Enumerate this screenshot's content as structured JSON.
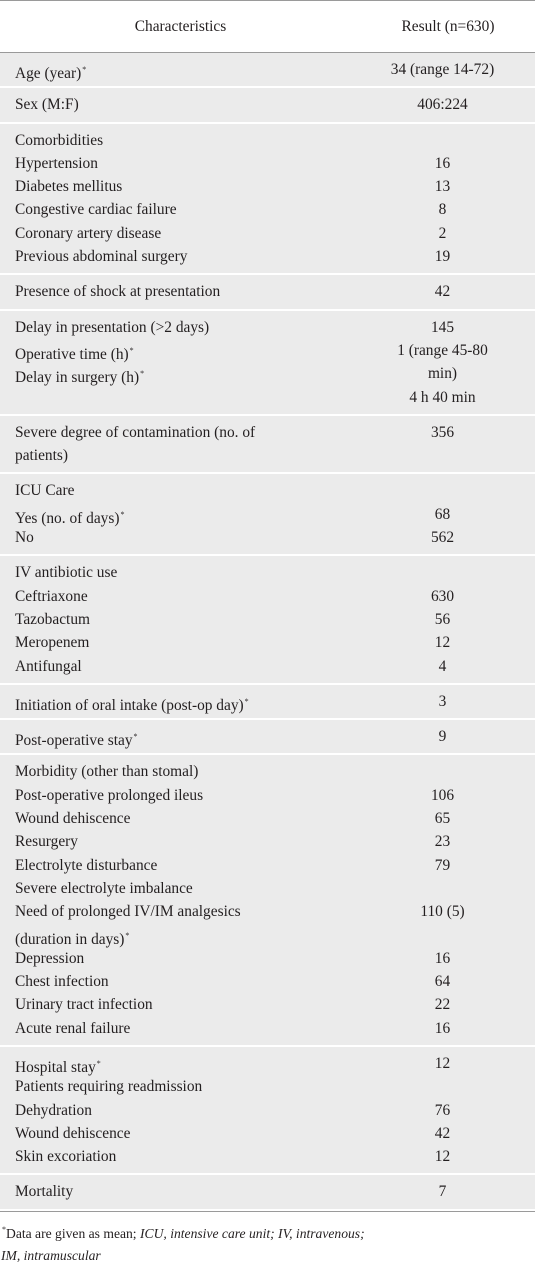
{
  "header": {
    "col1": "Characteristics",
    "col2": "Result (n=630)"
  },
  "groups": [
    {
      "lines": [
        {
          "label": "Age (year)",
          "ast": true,
          "value": "34 (range 14-72)"
        }
      ]
    },
    {
      "lines": [
        {
          "label": "Sex (M:F)",
          "value": "406:224"
        }
      ]
    },
    {
      "lines": [
        {
          "label": "Comorbidities",
          "value": ""
        },
        {
          "label": "Hypertension",
          "value": "16"
        },
        {
          "label": "Diabetes mellitus",
          "value": "13"
        },
        {
          "label": "Congestive cardiac failure",
          "value": "8"
        },
        {
          "label": "Coronary artery disease",
          "value": "2"
        },
        {
          "label": "Previous abdominal surgery",
          "value": "19"
        }
      ]
    },
    {
      "lines": [
        {
          "label": "Presence of shock at presentation",
          "value": "42"
        }
      ]
    },
    {
      "lines": [
        {
          "label": "Delay in presentation (>2 days)",
          "value": "145"
        },
        {
          "label": "Operative time (h)",
          "ast": true,
          "value": "1 (range 45-80"
        },
        {
          "label": "Delay in surgery (h)",
          "ast": true,
          "value": "min)"
        },
        {
          "label": "",
          "value": "4 h 40 min"
        }
      ]
    },
    {
      "lines": [
        {
          "label": "Severe degree of contamination (no. of",
          "value": "356"
        },
        {
          "label": "patients)",
          "value": ""
        }
      ]
    },
    {
      "lines": [
        {
          "label": "ICU Care",
          "value": ""
        },
        {
          "label": "Yes (no. of days)",
          "ast": true,
          "value": "68"
        },
        {
          "label": "No",
          "value": "562"
        }
      ]
    },
    {
      "lines": [
        {
          "label": "IV antibiotic use",
          "value": ""
        },
        {
          "label": "Ceftriaxone",
          "value": "630"
        },
        {
          "label": "Tazobactum",
          "value": "56"
        },
        {
          "label": "Meropenem",
          "value": "12"
        },
        {
          "label": "Antifungal",
          "value": "4"
        }
      ]
    },
    {
      "lines": [
        {
          "label": "Initiation of oral intake (post-op day)",
          "ast": true,
          "value": "3"
        }
      ]
    },
    {
      "lines": [
        {
          "label": "Post-operative stay",
          "ast": true,
          "value": "9"
        }
      ]
    },
    {
      "lines": [
        {
          "label": "Morbidity (other than stomal)",
          "value": ""
        },
        {
          "label": "Post-operative prolonged ileus",
          "value": "106"
        },
        {
          "label": "Wound dehiscence",
          "value": "65"
        },
        {
          "label": "Resurgery",
          "value": "23"
        },
        {
          "label": "Electrolyte disturbance",
          "value": "79"
        },
        {
          "label": "Severe electrolyte imbalance",
          "value": ""
        },
        {
          "label": "Need of prolonged IV/IM analgesics",
          "value": "110 (5)"
        },
        {
          "label": "(duration in days)",
          "ast": true,
          "value": ""
        },
        {
          "label": "Depression",
          "value": "16"
        },
        {
          "label": "Chest infection",
          "value": "64"
        },
        {
          "label": "Urinary tract infection",
          "value": "22"
        },
        {
          "label": "Acute renal failure",
          "value": "16"
        }
      ]
    },
    {
      "lines": [
        {
          "label": "Hospital stay",
          "ast": true,
          "value": "12"
        },
        {
          "label": "Patients requiring readmission",
          "value": ""
        },
        {
          "label": "Dehydration",
          "value": "76"
        },
        {
          "label": "Wound dehiscence",
          "value": "42"
        },
        {
          "label": "Skin excoriation",
          "value": "12"
        }
      ]
    },
    {
      "lines": [
        {
          "label": "Mortality",
          "value": "7"
        }
      ]
    }
  ],
  "footnote": {
    "marker": "*",
    "plain": "Data are given as mean; ",
    "italic1": "ICU, intensive care unit; IV, intravenous;",
    "italic2": "IM, intramuscular"
  }
}
